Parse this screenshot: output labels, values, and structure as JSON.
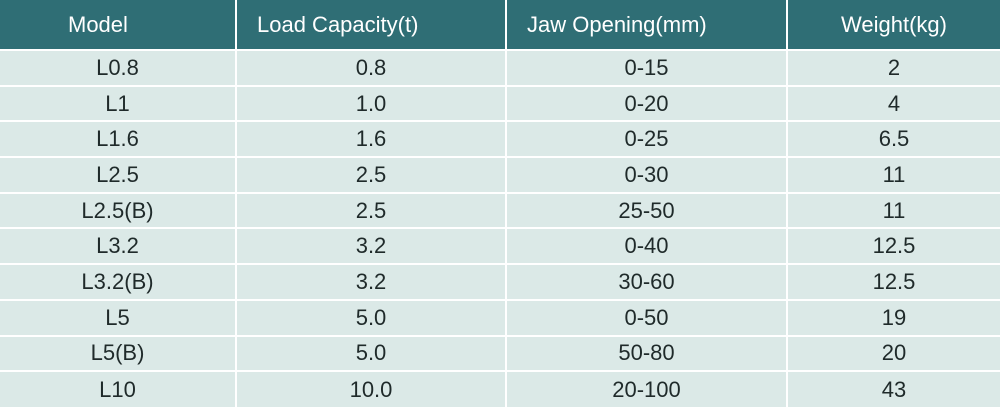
{
  "table": {
    "headers": [
      "Model",
      "Load Capacity(t)",
      "Jaw Opening(mm)",
      "Weight(kg)"
    ],
    "rows": [
      [
        "L0.8",
        "0.8",
        "0-15",
        "2"
      ],
      [
        "L1",
        "1.0",
        "0-20",
        "4"
      ],
      [
        "L1.6",
        "1.6",
        "0-25",
        "6.5"
      ],
      [
        "L2.5",
        "2.5",
        "0-30",
        "11"
      ],
      [
        "L2.5(B)",
        "2.5",
        "25-50",
        "11"
      ],
      [
        "L3.2",
        "3.2",
        "0-40",
        "12.5"
      ],
      [
        "L3.2(B)",
        "3.2",
        "30-60",
        "12.5"
      ],
      [
        "L5",
        "5.0",
        "0-50",
        "19"
      ],
      [
        "L5(B)",
        "5.0",
        "50-80",
        "20"
      ],
      [
        "L10",
        "10.0",
        "20-100",
        "43"
      ]
    ]
  },
  "colors": {
    "header_bg": "#2f6e75",
    "row_bg": "#dbe9e7",
    "text": "#1f2a2a"
  }
}
